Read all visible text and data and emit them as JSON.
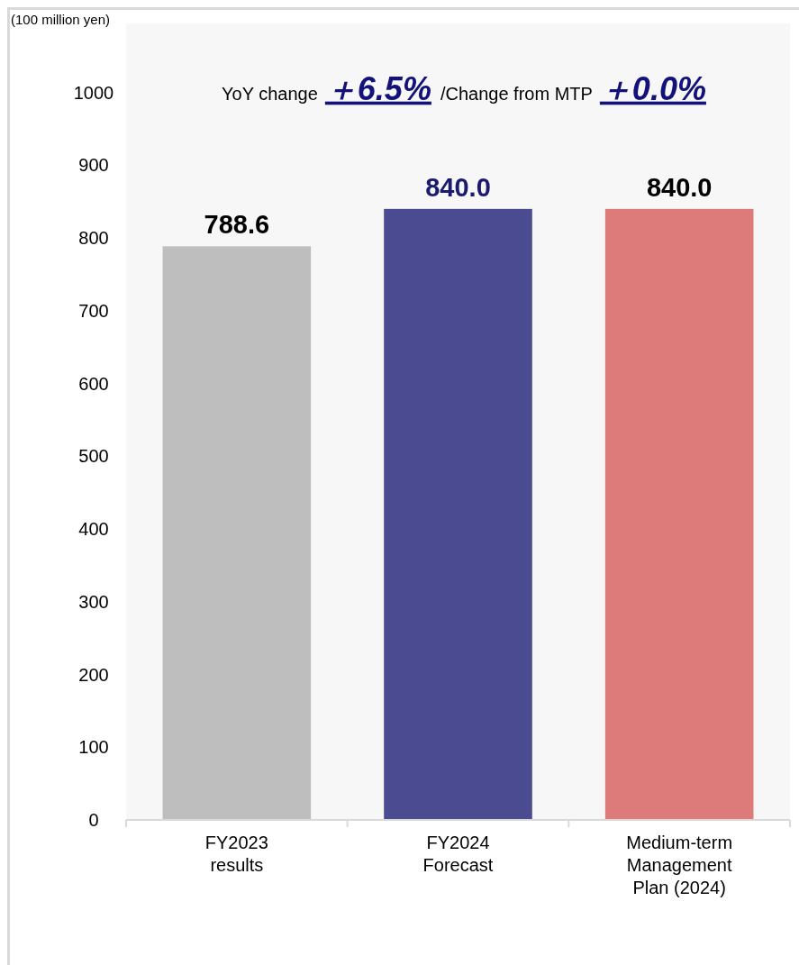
{
  "chart_data": {
    "type": "bar",
    "ylabel": "(100 million yen)",
    "annotations": [
      "YoY change",
      "＋6.5%",
      "/Change from MTP",
      "＋0.0%"
    ],
    "categories": [
      "FY2023\nresults",
      "FY2024\nForecast",
      "Medium-term\nManagement\nPlan (2024)"
    ],
    "values": [
      788.6,
      840.0,
      840.0
    ],
    "colors": [
      "#bebebe",
      "#4b4b91",
      "#dd7b7b"
    ],
    "value_labels": [
      "788.6",
      "840.0",
      "840.0"
    ],
    "ylim": [
      0,
      1095
    ],
    "yticks": [
      0,
      100,
      200,
      300,
      400,
      500,
      600,
      700,
      800,
      900,
      1000
    ],
    "grid": false
  }
}
